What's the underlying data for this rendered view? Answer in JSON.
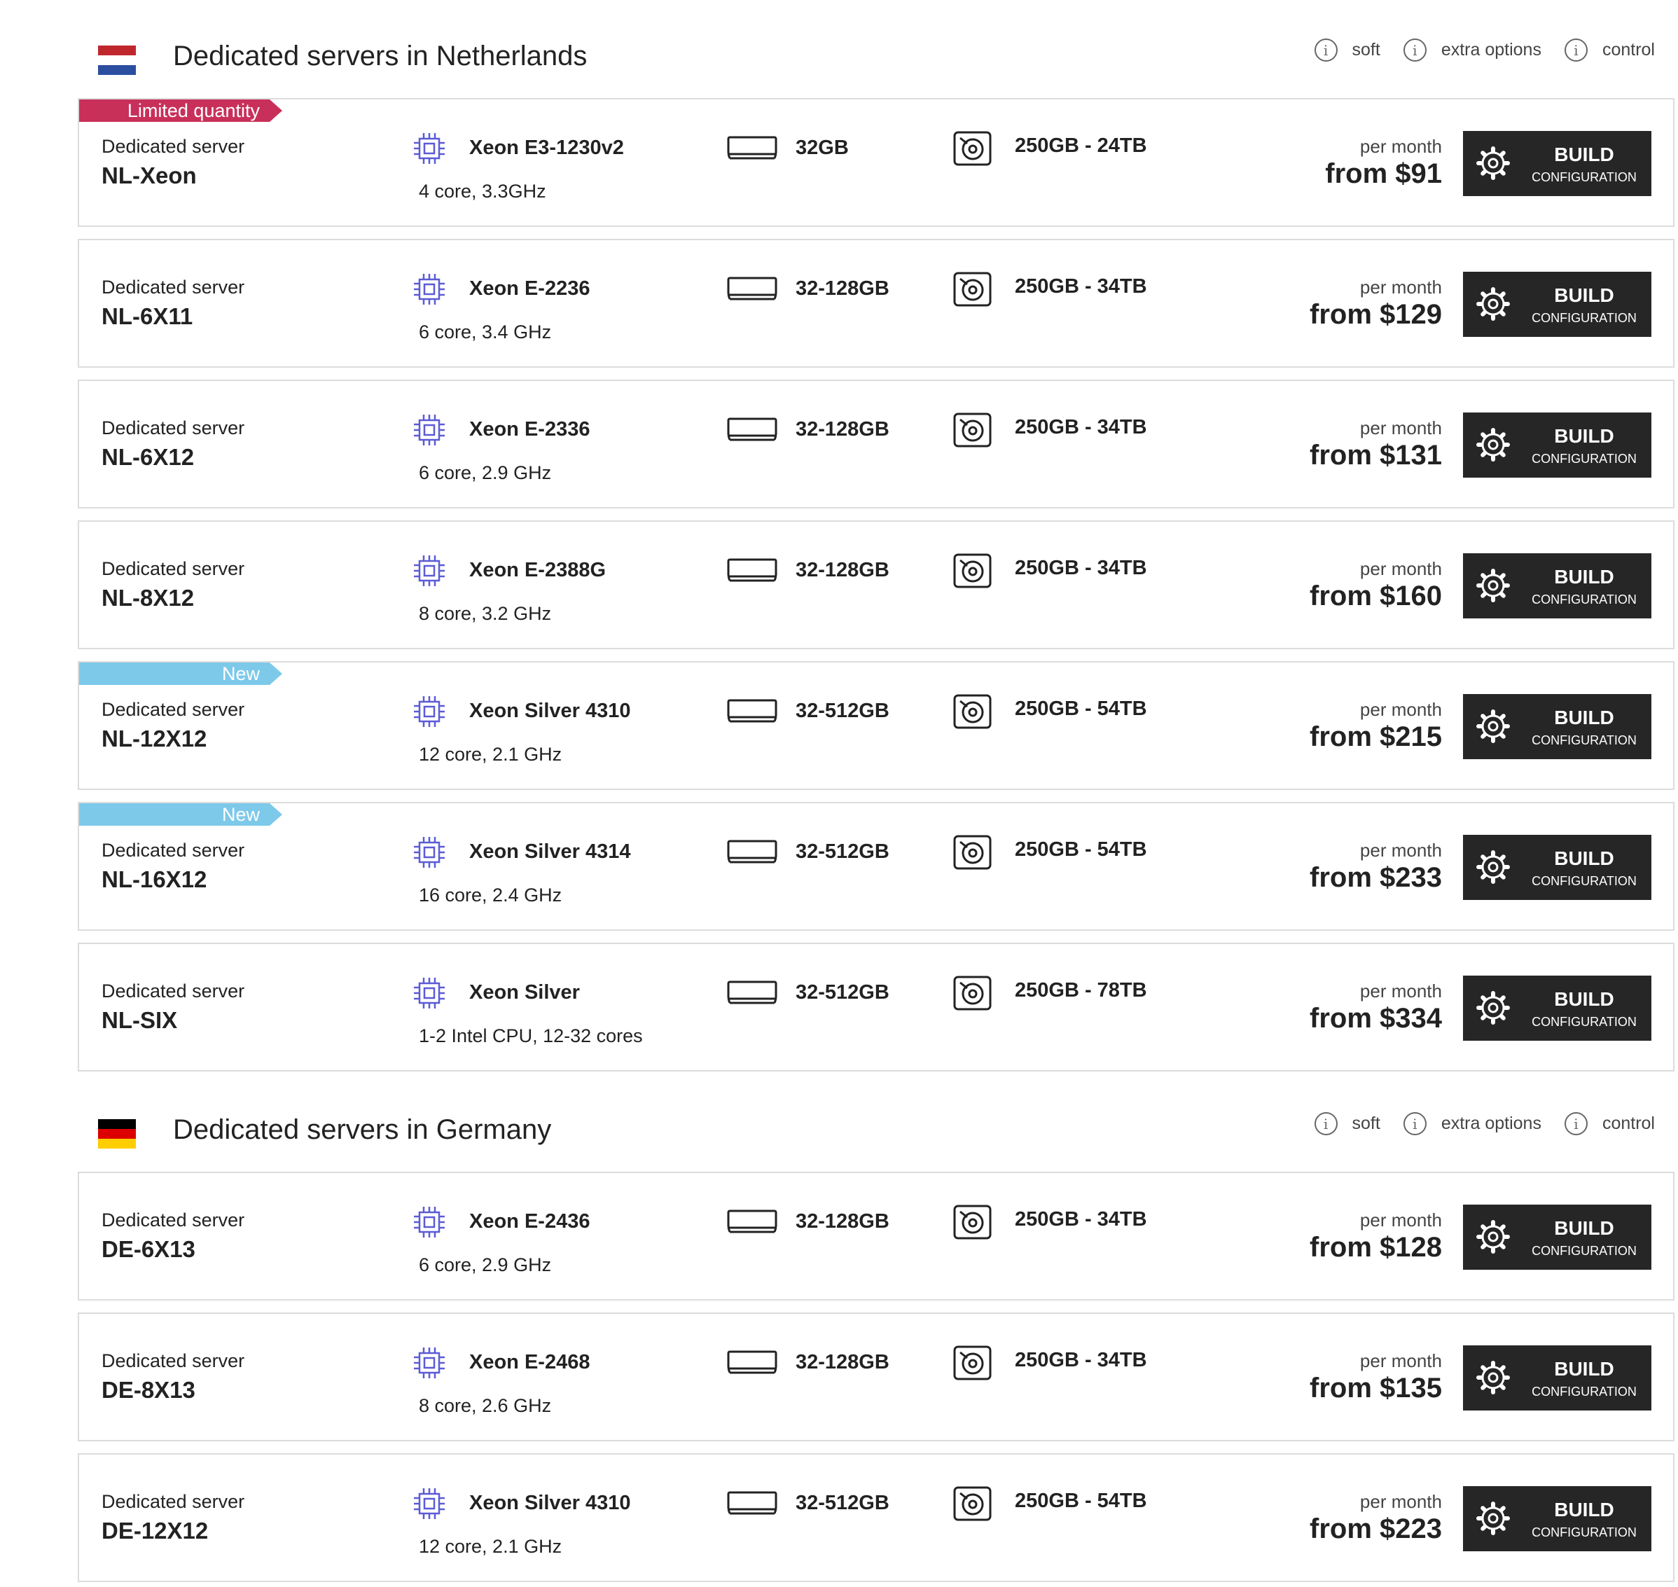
{
  "legend": {
    "items": [
      {
        "icon": "info-icon",
        "glyph": "i",
        "label": "soft"
      },
      {
        "icon": "info-icon",
        "glyph": "i",
        "label": "extra options"
      },
      {
        "icon": "info-icon",
        "glyph": "i",
        "label": "control"
      }
    ]
  },
  "button": {
    "title": "BUILD",
    "subtitle": "CONFIGURATION"
  },
  "colors": {
    "limited_ribbon": "#c8305a",
    "new_ribbon": "#7dc9ea",
    "icon_accent": "#5b5bd6",
    "button_bg": "#262626"
  },
  "sections": [
    {
      "title": "Dedicated servers in Netherlands",
      "flag": [
        "#c0272d",
        "#ffffff",
        "#2b4ea0"
      ],
      "servers": [
        {
          "badge": "Limited quantity",
          "badge_type": "limited",
          "type": "Dedicated server",
          "name": "NL-Xeon",
          "cpu": "Xeon E3-1230v2",
          "cpu_detail": "4 core, 3.3GHz",
          "ram": "32GB",
          "disk": "250GB - 24TB",
          "price_label": "per month",
          "price": "from $91"
        },
        {
          "badge": "",
          "badge_type": "",
          "type": "Dedicated server",
          "name": "NL-6X11",
          "cpu": "Xeon E-2236",
          "cpu_detail": "6 core, 3.4 GHz",
          "ram": "32-128GB",
          "disk": "250GB - 34TB",
          "price_label": "per month",
          "price": "from $129"
        },
        {
          "badge": "",
          "badge_type": "",
          "type": "Dedicated server",
          "name": "NL-6X12",
          "cpu": "Xeon E-2336",
          "cpu_detail": "6 core, 2.9 GHz",
          "ram": "32-128GB",
          "disk": "250GB - 34TB",
          "price_label": "per month",
          "price": "from $131"
        },
        {
          "badge": "",
          "badge_type": "",
          "type": "Dedicated server",
          "name": "NL-8X12",
          "cpu": "Xeon E-2388G",
          "cpu_detail": "8 core, 3.2 GHz",
          "ram": "32-128GB",
          "disk": "250GB - 34TB",
          "price_label": "per month",
          "price": "from $160"
        },
        {
          "badge": "New",
          "badge_type": "new",
          "type": "Dedicated server",
          "name": "NL-12X12",
          "cpu": "Xeon Silver 4310",
          "cpu_detail": "12 core, 2.1 GHz",
          "ram": "32-512GB",
          "disk": "250GB - 54TB",
          "price_label": "per month",
          "price": "from $215"
        },
        {
          "badge": "New",
          "badge_type": "new",
          "type": "Dedicated server",
          "name": "NL-16X12",
          "cpu": "Xeon Silver 4314",
          "cpu_detail": "16 core, 2.4 GHz",
          "ram": "32-512GB",
          "disk": "250GB - 54TB",
          "price_label": "per month",
          "price": "from $233"
        },
        {
          "badge": "",
          "badge_type": "",
          "type": "Dedicated server",
          "name": "NL-SIX",
          "cpu": "Xeon Silver",
          "cpu_detail": "1-2 Intel CPU, 12-32 cores",
          "ram": "32-512GB",
          "disk": "250GB - 78TB",
          "price_label": "per month",
          "price": "from $334"
        }
      ]
    },
    {
      "title": "Dedicated servers in Germany",
      "flag": [
        "#000000",
        "#dd0000",
        "#ffce00"
      ],
      "servers": [
        {
          "badge": "",
          "badge_type": "",
          "type": "Dedicated server",
          "name": "DE-6X13",
          "cpu": "Xeon E-2436",
          "cpu_detail": "6 core, 2.9 GHz",
          "ram": "32-128GB",
          "disk": "250GB - 34TB",
          "price_label": "per month",
          "price": "from $128"
        },
        {
          "badge": "",
          "badge_type": "",
          "type": "Dedicated server",
          "name": "DE-8X13",
          "cpu": "Xeon E-2468",
          "cpu_detail": "8 core, 2.6 GHz",
          "ram": "32-128GB",
          "disk": "250GB - 34TB",
          "price_label": "per month",
          "price": "from $135"
        },
        {
          "badge": "",
          "badge_type": "",
          "type": "Dedicated server",
          "name": "DE-12X12",
          "cpu": "Xeon Silver 4310",
          "cpu_detail": "12 core, 2.1 GHz",
          "ram": "32-512GB",
          "disk": "250GB - 54TB",
          "price_label": "per month",
          "price": "from $223"
        }
      ]
    }
  ]
}
